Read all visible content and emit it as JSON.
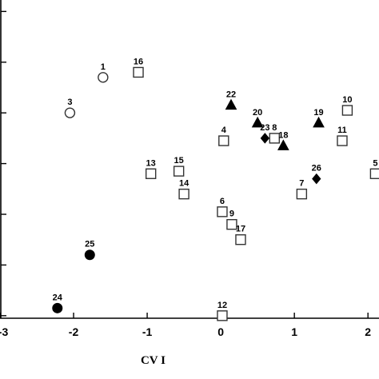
{
  "chart_data": {
    "type": "scatter",
    "xlabel": "CV I",
    "ylabel": "",
    "xlim": [
      -3,
      2.15
    ],
    "ylim": [
      -4.05,
      2.1
    ],
    "x_ticks": [
      -3,
      -2,
      -1,
      0,
      1,
      2
    ],
    "x_tick_labels": [
      "-3",
      "-2",
      "-1",
      "0",
      "1",
      "2"
    ],
    "y_ticks": [
      -4,
      -3,
      -2,
      -1,
      0,
      1,
      2
    ],
    "grid": false,
    "legend": "none",
    "marker_legend": {
      "open-circle": "circle",
      "filled-circle": "circle",
      "open-square": "square",
      "filled-triangle": "triangle",
      "filled-diamond": "diamond"
    },
    "points": [
      {
        "label": "1",
        "x": -1.6,
        "y": 0.7,
        "marker": "open-circle"
      },
      {
        "label": "3",
        "x": -2.05,
        "y": 0.0,
        "marker": "open-circle"
      },
      {
        "label": "25",
        "x": -1.78,
        "y": -2.8,
        "marker": "filled-circle"
      },
      {
        "label": "24",
        "x": -2.22,
        "y": -3.85,
        "marker": "filled-circle"
      },
      {
        "label": "16",
        "x": -1.12,
        "y": 0.8,
        "marker": "open-square"
      },
      {
        "label": "13",
        "x": -0.95,
        "y": -1.2,
        "marker": "open-square"
      },
      {
        "label": "15",
        "x": -0.57,
        "y": -1.15,
        "marker": "open-square"
      },
      {
        "label": "14",
        "x": -0.5,
        "y": -1.6,
        "marker": "open-square"
      },
      {
        "label": "4",
        "x": 0.04,
        "y": -0.55,
        "marker": "open-square"
      },
      {
        "label": "6",
        "x": 0.02,
        "y": -1.95,
        "marker": "open-square"
      },
      {
        "label": "9",
        "x": 0.15,
        "y": -2.2,
        "marker": "open-square"
      },
      {
        "label": "17",
        "x": 0.27,
        "y": -2.5,
        "marker": "open-square"
      },
      {
        "label": "12",
        "x": 0.02,
        "y": -4.0,
        "marker": "open-square"
      },
      {
        "label": "8",
        "x": 0.73,
        "y": -0.5,
        "marker": "open-square"
      },
      {
        "label": "7",
        "x": 1.1,
        "y": -1.6,
        "marker": "open-square"
      },
      {
        "label": "11",
        "x": 1.65,
        "y": -0.55,
        "marker": "open-square"
      },
      {
        "label": "10",
        "x": 1.72,
        "y": 0.05,
        "marker": "open-square"
      },
      {
        "label": "5",
        "x": 2.1,
        "y": -1.2,
        "marker": "open-square"
      },
      {
        "label": "22",
        "x": 0.14,
        "y": 0.15,
        "marker": "filled-triangle"
      },
      {
        "label": "20",
        "x": 0.5,
        "y": -0.2,
        "marker": "filled-triangle"
      },
      {
        "label": "18",
        "x": 0.85,
        "y": -0.65,
        "marker": "filled-triangle"
      },
      {
        "label": "19",
        "x": 1.33,
        "y": -0.2,
        "marker": "filled-triangle"
      },
      {
        "label": "23",
        "x": 0.6,
        "y": -0.5,
        "marker": "filled-diamond"
      },
      {
        "label": "26",
        "x": 1.3,
        "y": -1.3,
        "marker": "filled-diamond"
      }
    ]
  }
}
